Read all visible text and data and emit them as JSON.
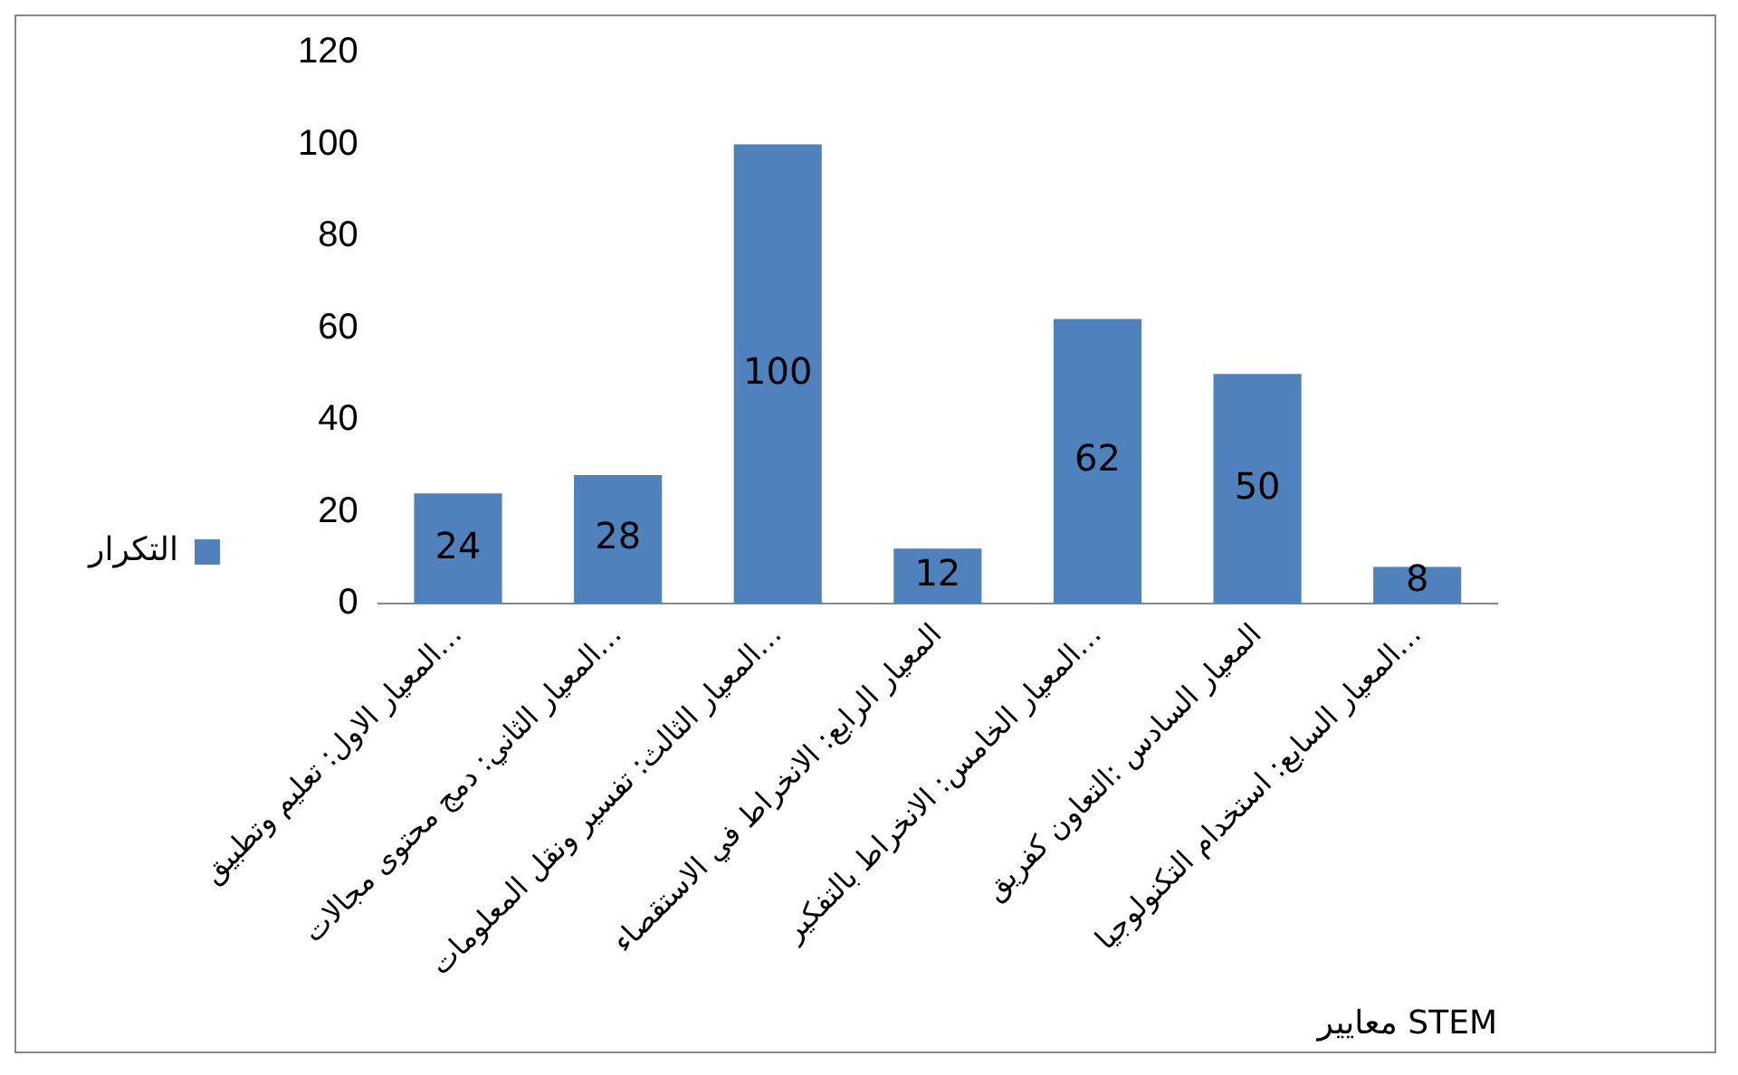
{
  "chart_data": {
    "type": "bar",
    "xlabel": "معايير STEM",
    "categories": [
      "المعيار الاول: تعليم وتطبيق…",
      "المعيار الثاني: دمج محتوى مجالات…",
      "المعيار الثالث: تفسير ونقل المعلومات…",
      "المعيار الرابع: الانخراط في الاستقصاء",
      "المعيار الخامس: الانخراط بالتفكير…",
      "المعيار السادس :التعاون كفريق",
      "المعيار السابع: استخدام التكنولوجيا…"
    ],
    "series": [
      {
        "name": "التكرار",
        "color": "#4f81bd",
        "values": [
          24,
          28,
          100,
          12,
          62,
          50,
          8
        ]
      }
    ],
    "ylim": [
      0,
      120
    ],
    "yticks": [
      0,
      20,
      40,
      60,
      80,
      100,
      120
    ],
    "grid": false,
    "legend": "left",
    "data_labels": true
  }
}
